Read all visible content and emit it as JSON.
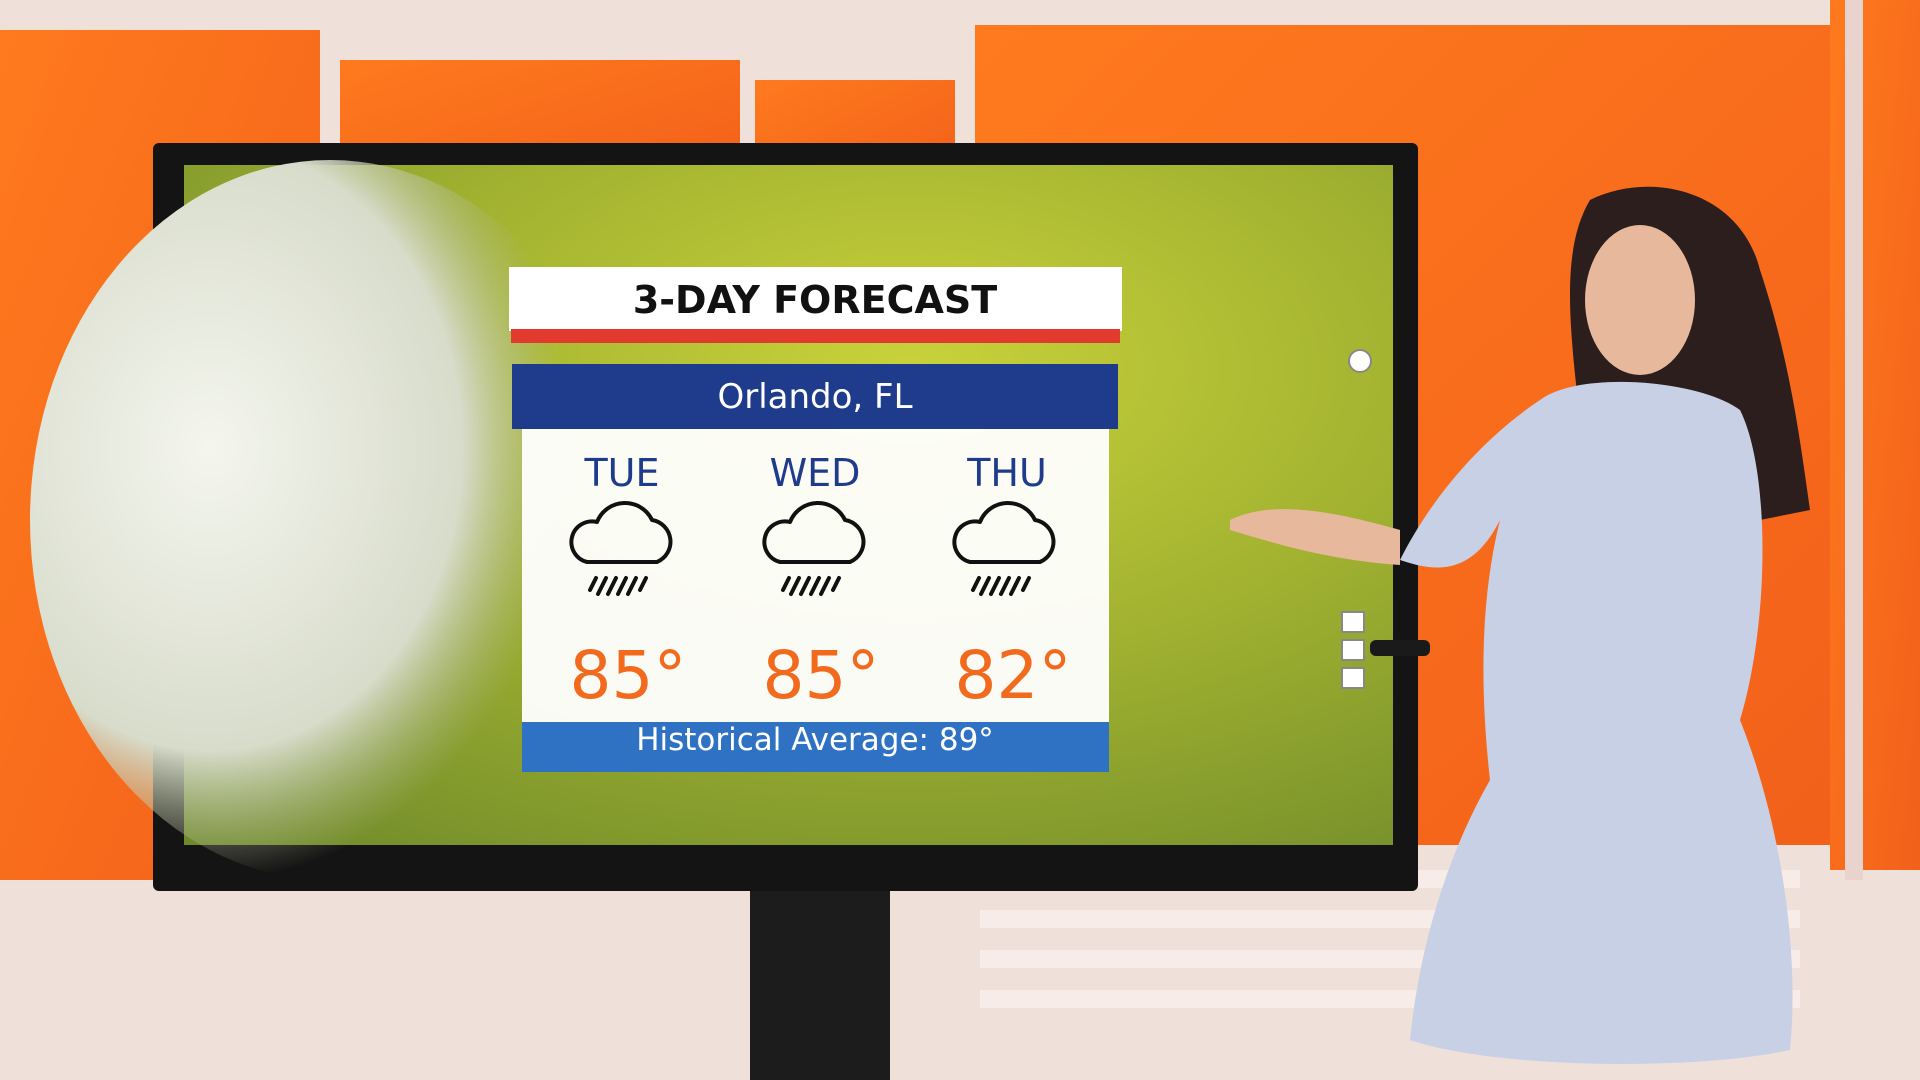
{
  "graphic": {
    "title": "3-DAY FORECAST",
    "location": "Orlando, FL",
    "days": [
      {
        "day": "TUE",
        "temp": "85°"
      },
      {
        "day": "WED",
        "temp": "85°"
      },
      {
        "day": "THU",
        "temp": "82°"
      }
    ],
    "footer": "Historical Average: 89°"
  }
}
